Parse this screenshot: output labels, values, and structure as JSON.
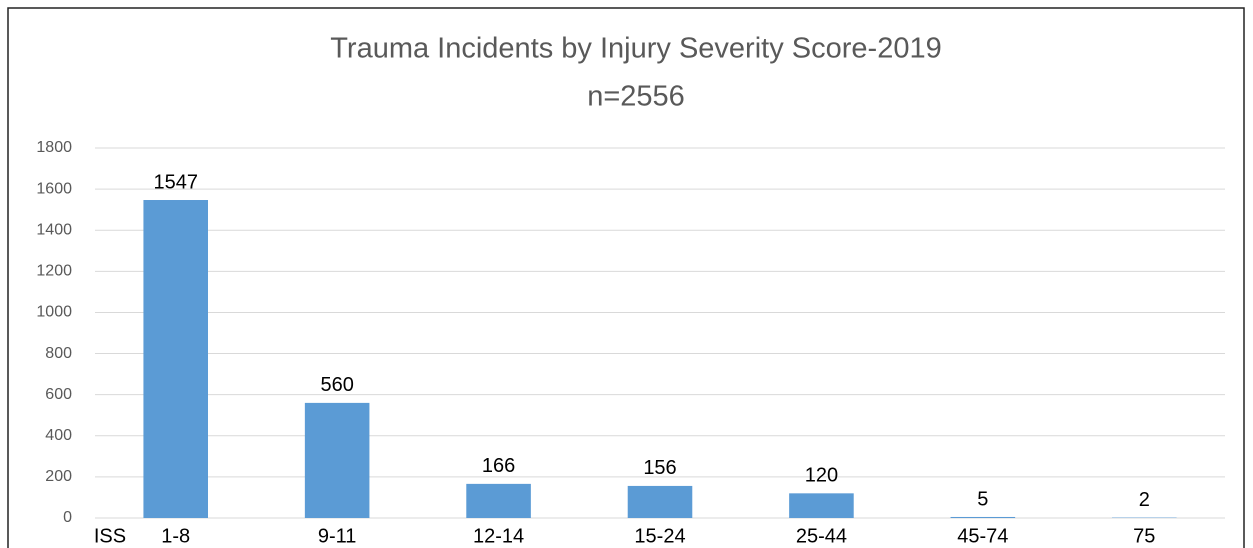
{
  "chart_data": {
    "type": "bar",
    "title": "Trauma Incidents by Injury Severity Score-2019",
    "subtitle": "n=2556",
    "x_label": "ISS",
    "categories": [
      "1-8",
      "9-11",
      "12-14",
      "15-24",
      "25-44",
      "45-74",
      "75"
    ],
    "values": [
      1547,
      560,
      166,
      156,
      120,
      5,
      2
    ],
    "color": "#5b9bd5",
    "ylim": [
      0,
      1800
    ],
    "yticks": [
      0,
      200,
      400,
      600,
      800,
      1000,
      1200,
      1400,
      1600,
      1800
    ],
    "grid": true
  }
}
